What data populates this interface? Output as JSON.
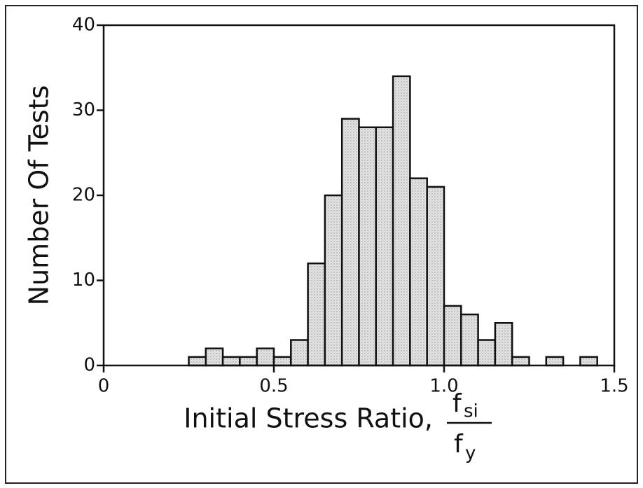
{
  "chart_data": {
    "type": "histogram",
    "x_label": "Initial Stress Ratio,",
    "x_label_fraction": {
      "numerator": "f",
      "numerator_sub": "si",
      "denominator": "f",
      "denominator_sub": "y"
    },
    "y_label": "Number Of Tests",
    "bins": [
      0.25,
      0.3,
      0.35,
      0.4,
      0.45,
      0.5,
      0.55,
      0.6,
      0.65,
      0.7,
      0.75,
      0.8,
      0.85,
      0.9,
      0.95,
      1.0,
      1.05,
      1.1,
      1.15,
      1.2,
      1.25,
      1.3,
      1.35,
      1.4,
      1.45
    ],
    "values": [
      1,
      2,
      1,
      1,
      2,
      1,
      3,
      12,
      20,
      29,
      28,
      28,
      34,
      22,
      21,
      7,
      6,
      3,
      5,
      1,
      0,
      1,
      0,
      1
    ],
    "color": "#d6d6d6",
    "xlim": [
      0,
      1.5
    ],
    "xticks": [
      0,
      0.5,
      {
        "value": 1.0,
        "label": "1.0"
      },
      1.5
    ],
    "ylim": [
      0,
      40
    ],
    "yticks": [
      0,
      10,
      20,
      30,
      40
    ]
  }
}
